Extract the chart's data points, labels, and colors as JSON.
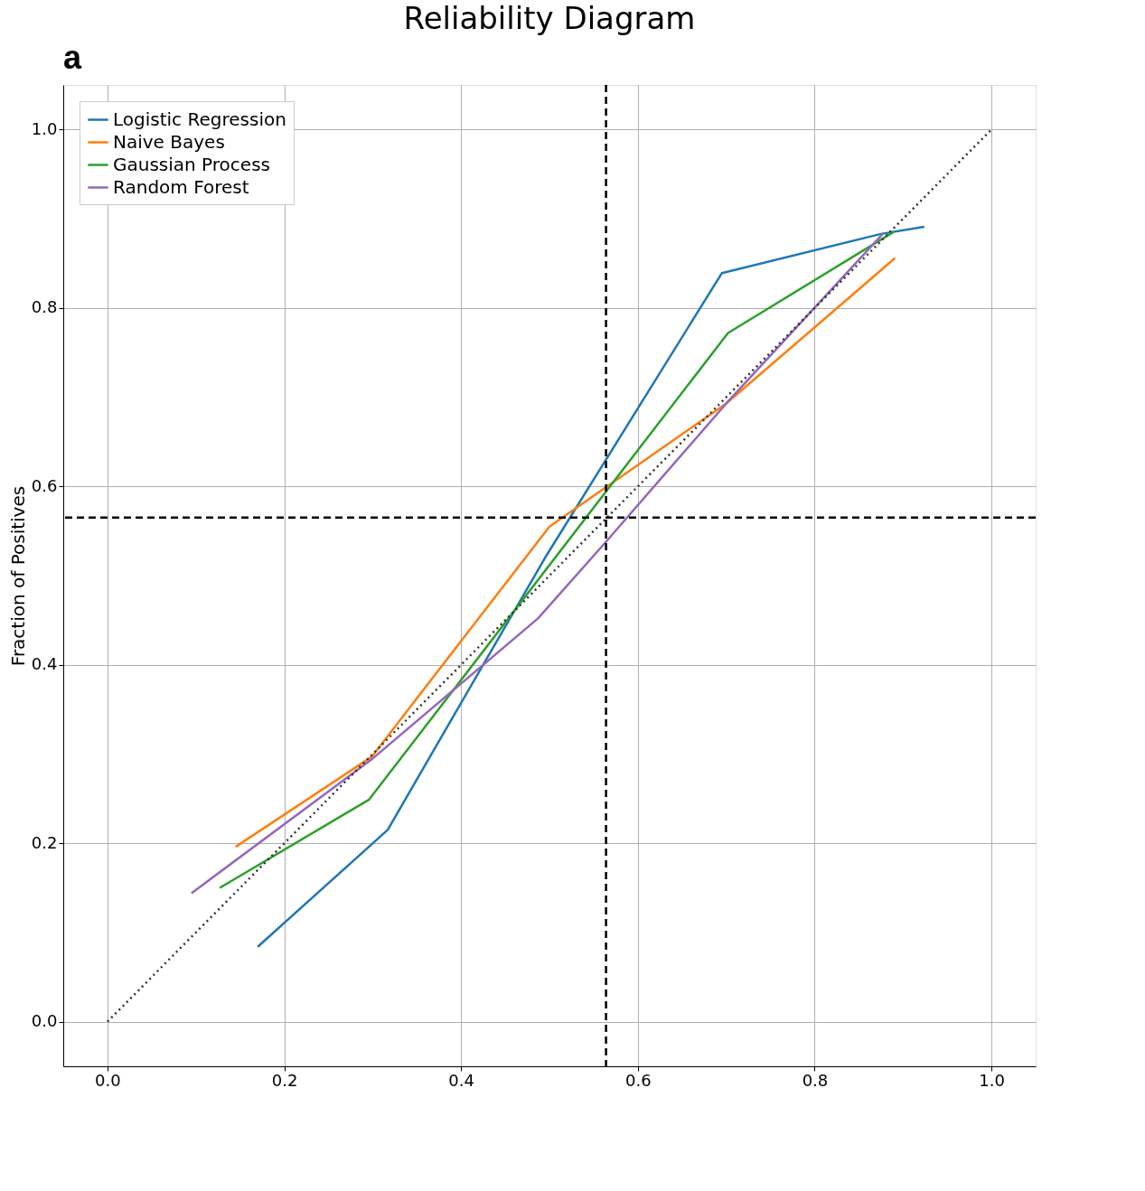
{
  "chart_data": {
    "type": "line",
    "title": "Reliability Diagram",
    "ylabel": "Fraction of Positives",
    "annotations": [
      "a"
    ],
    "xlim": [
      -0.05,
      1.05
    ],
    "ylim": [
      -0.05,
      1.05
    ],
    "xticks": [
      {
        "value": 0,
        "label": "0.0"
      },
      {
        "value": 0.2,
        "label": "0.2"
      },
      {
        "value": 0.4,
        "label": "0.4"
      },
      {
        "value": 0.6,
        "label": "0.6"
      },
      {
        "value": 0.8,
        "label": "0.8"
      },
      {
        "value": 1,
        "label": "1.0"
      }
    ],
    "yticks": [
      {
        "value": 0,
        "label": "0.0"
      },
      {
        "value": 0.2,
        "label": "0.2"
      },
      {
        "value": 0.4,
        "label": "0.4"
      },
      {
        "value": 0.6,
        "label": "0.6"
      },
      {
        "value": 0.8,
        "label": "0.8"
      },
      {
        "value": 1,
        "label": "1.0"
      }
    ],
    "grid": true,
    "legend": "top left",
    "marker": "none",
    "ref_lines": [
      {
        "axis": "x",
        "value": 0.564,
        "color": "#000000",
        "line_style": "dashed"
      },
      {
        "axis": "y",
        "value": 0.565,
        "color": "#000000",
        "line_style": "dashed"
      }
    ],
    "series": [
      {
        "name": "Logistic Regression",
        "color": "#1f77b4",
        "line_style": "solid",
        "x": [
          0.17,
          0.317,
          0.495,
          0.695,
          0.875,
          0.924
        ],
        "values": [
          0.084,
          0.215,
          0.52,
          0.839,
          0.883,
          0.891
        ]
      },
      {
        "name": "Naive Bayes",
        "color": "#ff7f0e",
        "line_style": "solid",
        "x": [
          0.145,
          0.299,
          0.5,
          0.7,
          0.891
        ],
        "values": [
          0.196,
          0.297,
          0.555,
          0.693,
          0.856
        ]
      },
      {
        "name": "Gaussian Process",
        "color": "#2ca02c",
        "line_style": "solid",
        "x": [
          0.127,
          0.296,
          0.702,
          0.889
        ],
        "values": [
          0.15,
          0.249,
          0.772,
          0.885
        ]
      },
      {
        "name": "Random Forest",
        "color": "#9467bd",
        "line_style": "solid",
        "x": [
          0.095,
          0.3,
          0.487,
          0.564,
          0.7,
          0.877
        ],
        "values": [
          0.144,
          0.295,
          0.452,
          0.538,
          0.693,
          0.883
        ]
      },
      {
        "color": "#333333",
        "line_style": "dotted",
        "x": [
          0,
          1
        ],
        "values": [
          0,
          1
        ]
      }
    ]
  }
}
